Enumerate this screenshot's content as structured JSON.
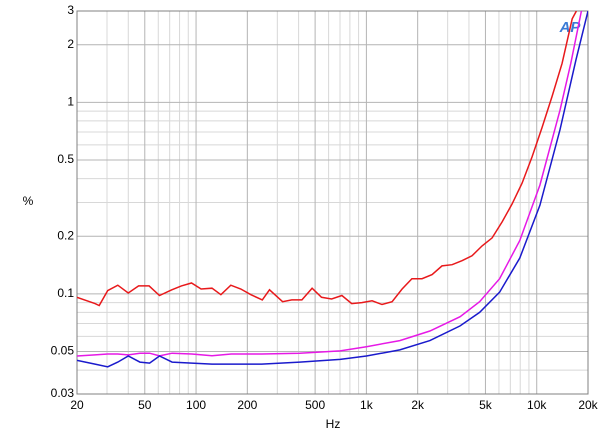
{
  "chart_data": {
    "type": "line",
    "x_label": "Hz",
    "y_label": "%",
    "logo": "AP",
    "xscale": "log",
    "yscale": "log",
    "grid": true,
    "xlim": [
      20,
      20000
    ],
    "ylim": [
      0.03,
      3
    ],
    "xticks": [
      20,
      50,
      100,
      200,
      500,
      {
        "value": 1000,
        "label": "1k"
      },
      {
        "value": 2000,
        "label": "2k"
      },
      {
        "value": 5000,
        "label": "5k"
      },
      {
        "value": 10000,
        "label": "10k"
      },
      {
        "value": 20000,
        "label": "20k"
      }
    ],
    "xticks_minor": [
      30,
      40,
      60,
      70,
      80,
      90,
      300,
      400,
      600,
      700,
      800,
      900,
      3000,
      4000,
      6000,
      7000,
      8000,
      9000
    ],
    "yticks": [
      0.03,
      0.05,
      0.1,
      0.2,
      0.5,
      1,
      2,
      3
    ],
    "yticks_minor": [
      0.04,
      0.06,
      0.07,
      0.08,
      0.09,
      0.3,
      0.4,
      0.6,
      0.7,
      0.8,
      0.9
    ],
    "series": [
      {
        "name": "red",
        "color": "#e8191b",
        "x": [
          20,
          25.5,
          27,
          30.3,
          34.7,
          40,
          46,
          53,
          61,
          72,
          82,
          94,
          107,
          124,
          140,
          160,
          183,
          210,
          245,
          270,
          322,
          365,
          418,
          480,
          545,
          625,
          718,
          820,
          940,
          1080,
          1235,
          1415,
          1620,
          1850,
          2120,
          2430,
          2780,
          3185,
          3640,
          4170,
          4780,
          5470,
          6270,
          7170,
          8210,
          9400,
          10760,
          12320,
          14100,
          16150,
          17100
        ],
        "values": [
          0.096,
          0.089,
          0.087,
          0.104,
          0.111,
          0.101,
          0.11,
          0.11,
          0.098,
          0.105,
          0.11,
          0.114,
          0.106,
          0.107,
          0.099,
          0.111,
          0.106,
          0.099,
          0.093,
          0.105,
          0.091,
          0.093,
          0.093,
          0.107,
          0.096,
          0.094,
          0.098,
          0.089,
          0.09,
          0.092,
          0.088,
          0.091,
          0.106,
          0.12,
          0.12,
          0.126,
          0.14,
          0.142,
          0.149,
          0.158,
          0.178,
          0.196,
          0.238,
          0.295,
          0.379,
          0.52,
          0.74,
          1.08,
          1.6,
          2.73,
          3.0
        ]
      },
      {
        "name": "magenta",
        "color": "#e619e6",
        "x": [
          20,
          25.5,
          30.3,
          34.7,
          40,
          46.8,
          53.4,
          61,
          72.3,
          94.4,
          124,
          161,
          243,
          406,
          702,
          1000,
          1570,
          2360,
          3550,
          4620,
          6050,
          7960,
          10440,
          13700,
          15860,
          18300
        ],
        "values": [
          0.0474,
          0.048,
          0.0485,
          0.0485,
          0.048,
          0.049,
          0.049,
          0.0475,
          0.049,
          0.0485,
          0.0475,
          0.0485,
          0.0485,
          0.049,
          0.0504,
          0.053,
          0.057,
          0.064,
          0.076,
          0.091,
          0.12,
          0.19,
          0.37,
          0.91,
          1.6,
          3.0
        ]
      },
      {
        "name": "blue",
        "color": "#1a1acc",
        "x": [
          20,
          25.5,
          30.3,
          34.7,
          40,
          46.8,
          53.4,
          61,
          72.3,
          94.4,
          124,
          243,
          406,
          702,
          1000,
          1570,
          2360,
          3550,
          4620,
          6050,
          7960,
          10440,
          13700,
          17000,
          20000
        ],
        "values": [
          0.045,
          0.043,
          0.0416,
          0.044,
          0.0474,
          0.044,
          0.0435,
          0.0474,
          0.044,
          0.0435,
          0.043,
          0.043,
          0.044,
          0.0455,
          0.0474,
          0.051,
          0.057,
          0.068,
          0.08,
          0.102,
          0.154,
          0.29,
          0.72,
          1.67,
          3.0
        ]
      }
    ]
  }
}
